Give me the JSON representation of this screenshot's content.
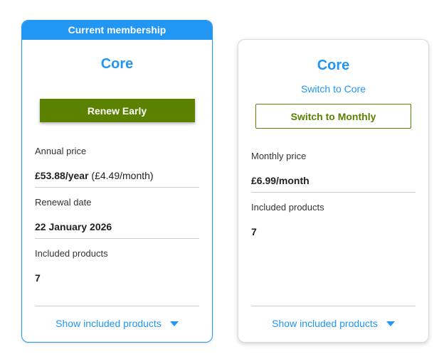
{
  "current_card": {
    "banner": "Current membership",
    "plan_name": "Core",
    "renew_button": "Renew Early",
    "price_label": "Annual price",
    "price_value": "£53.88/year",
    "price_secondary": "(£4.49/month)",
    "renewal_label": "Renewal date",
    "renewal_value": "22 January 2026",
    "products_label": "Included products",
    "products_value": "7",
    "show_products": "Show included products"
  },
  "other_card": {
    "plan_name": "Core",
    "switch_link": "Switch to Core",
    "switch_button": "Switch to Monthly",
    "price_label": "Monthly price",
    "price_value": "£6.99/month",
    "products_label": "Included products",
    "products_value": "7",
    "show_products": "Show included products"
  },
  "colors": {
    "accent": "#2196f3",
    "action_green": "#5a8100"
  },
  "icons": {
    "expand": "caret-down-icon"
  }
}
